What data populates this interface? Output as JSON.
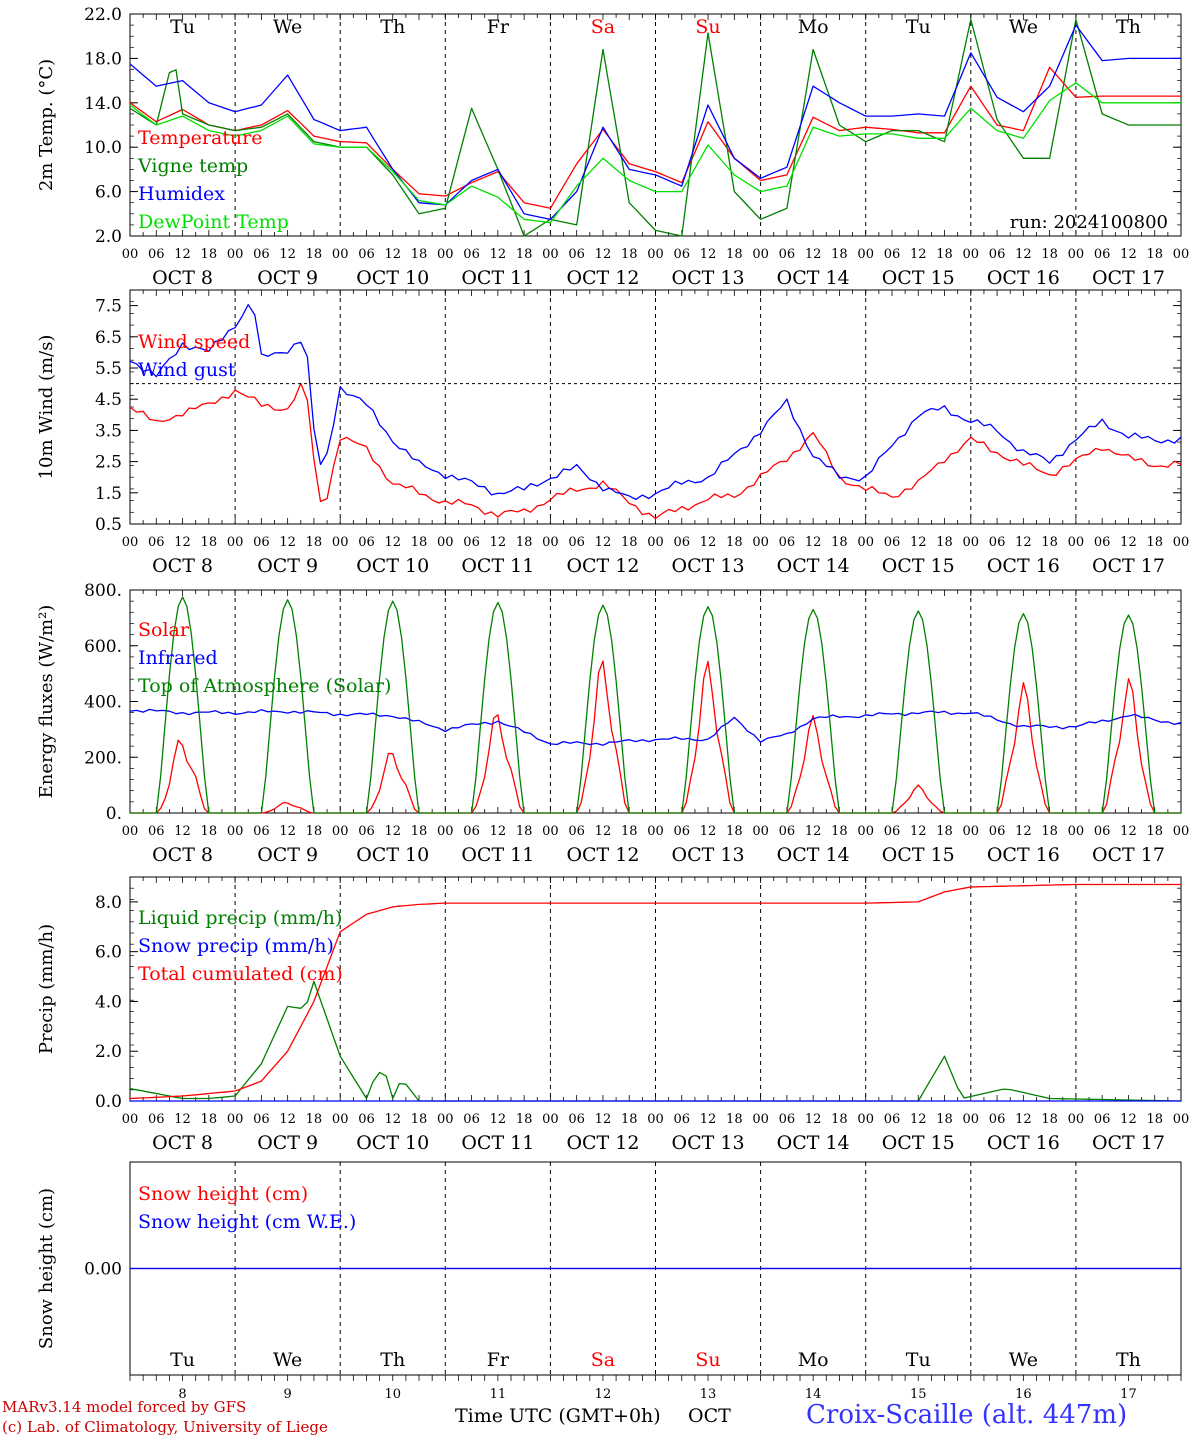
{
  "days": [
    "Tu",
    "We",
    "Th",
    "Fr",
    "Sa",
    "Su",
    "Mo",
    "Tu",
    "We",
    "Th"
  ],
  "weekend_days": [
    4,
    5
  ],
  "day_dates": [
    "OCT  8",
    "OCT  9",
    "OCT 10",
    "OCT 11",
    "OCT 12",
    "OCT 13",
    "OCT 14",
    "OCT 15",
    "OCT 16",
    "OCT 17"
  ],
  "hour_ticks": [
    "00",
    "06",
    "12",
    "18"
  ],
  "end_tick": "00",
  "bottom_dates": [
    "8",
    "9",
    "10",
    "11",
    "12",
    "13",
    "14",
    "15",
    "16",
    "17"
  ],
  "colors": {
    "red": "#ff0000",
    "green": "#008000",
    "blue": "#0000ff",
    "lime": "#00e000",
    "axis": "#000000",
    "purple": "#800080"
  },
  "footer": {
    "model": "MARv3.14 model forced by GFS",
    "copyright": "(c) Lab. of Climatology, University of Liege",
    "time_label": "Time UTC (GMT+0h)",
    "month": "OCT",
    "station": "Croix-Scaille (alt. 447m)"
  },
  "chart_data": [
    {
      "type": "line",
      "ylabel": "2m Temp. (°C)",
      "ylim": [
        2,
        22
      ],
      "yticks": [
        "22.0",
        "18.0",
        "14.0",
        "10.0",
        "6.0",
        "2.0"
      ],
      "annotation": "run: 2024100800",
      "x_unit": "hours since Oct 8 00 UTC",
      "series": [
        {
          "name": "Temperature",
          "color": "red",
          "x": [
            0,
            6,
            12,
            18,
            24,
            30,
            36,
            42,
            48,
            54,
            60,
            66,
            72,
            78,
            84,
            90,
            96,
            102,
            108,
            114,
            120,
            126,
            132,
            138,
            144,
            150,
            156,
            162,
            168,
            174,
            180,
            186,
            192,
            198,
            204,
            210,
            216,
            222,
            228,
            234,
            240
          ],
          "y": [
            14,
            12.3,
            13.4,
            12,
            11.5,
            12,
            13.3,
            11,
            10.5,
            10.4,
            8,
            5.8,
            5.6,
            6.8,
            7.8,
            5,
            4.5,
            8.5,
            11.6,
            8.5,
            7.8,
            6.8,
            12.3,
            9,
            7,
            7.5,
            12.7,
            11.5,
            11.8,
            11.6,
            11.3,
            11.3,
            15.5,
            12,
            11.5,
            17.2,
            14.5,
            14.6,
            14.6,
            14.6,
            14.6
          ]
        },
        {
          "name": "Vigne temp",
          "color": "green",
          "x": [
            0,
            6,
            10,
            12,
            18,
            24,
            30,
            36,
            42,
            48,
            54,
            60,
            66,
            72,
            78,
            84,
            90,
            96,
            102,
            108,
            114,
            120,
            126,
            132,
            138,
            144,
            150,
            156,
            162,
            168,
            174,
            180,
            186,
            192,
            198,
            204,
            210,
            216,
            222,
            228,
            234,
            240
          ],
          "y": [
            13.5,
            12,
            18.3,
            13,
            12,
            11.5,
            11.8,
            13,
            10.5,
            10,
            10,
            7.5,
            4,
            4.5,
            13.5,
            8,
            2,
            3.5,
            3,
            18.8,
            5,
            2.5,
            2,
            20.3,
            6,
            3.5,
            4.5,
            18.8,
            12,
            10.5,
            11.5,
            11.5,
            10.5,
            21.5,
            12.5,
            9,
            9,
            21.5,
            13,
            12,
            12,
            12
          ]
        },
        {
          "name": "Humidex",
          "color": "blue",
          "x": [
            0,
            6,
            12,
            18,
            24,
            30,
            36,
            42,
            48,
            54,
            60,
            66,
            72,
            78,
            84,
            90,
            96,
            102,
            108,
            114,
            120,
            126,
            132,
            138,
            144,
            150,
            156,
            162,
            168,
            174,
            180,
            186,
            192,
            198,
            204,
            210,
            216,
            222,
            228,
            234,
            240
          ],
          "y": [
            17.5,
            15.5,
            16,
            14,
            13.2,
            13.8,
            16.5,
            12.5,
            11.5,
            11.8,
            8,
            5,
            4.8,
            7,
            8,
            4,
            3.5,
            6,
            11.8,
            8,
            7.5,
            6.5,
            13.8,
            9,
            7.2,
            8.2,
            15.5,
            14,
            12.8,
            12.8,
            13,
            12.8,
            18.5,
            14.5,
            13.2,
            15.5,
            21,
            17.8,
            18,
            18,
            18
          ]
        },
        {
          "name": "DewPoint Temp",
          "color": "lime",
          "x": [
            0,
            6,
            12,
            18,
            24,
            30,
            36,
            42,
            48,
            54,
            60,
            66,
            72,
            78,
            84,
            90,
            96,
            102,
            108,
            114,
            120,
            126,
            132,
            138,
            144,
            150,
            156,
            162,
            168,
            174,
            180,
            186,
            192,
            198,
            204,
            210,
            216,
            222,
            228,
            234,
            240
          ],
          "y": [
            13.8,
            12,
            12.8,
            11.5,
            11,
            11.5,
            12.8,
            10.3,
            10,
            10,
            7.8,
            5.2,
            4.8,
            6.5,
            5.5,
            3.5,
            3.2,
            6.5,
            9,
            7,
            6,
            6,
            10.2,
            7.5,
            6,
            6.5,
            11.8,
            11,
            11.2,
            11.2,
            10.8,
            10.8,
            13.5,
            11.5,
            10.8,
            14.2,
            15.8,
            14,
            14,
            14,
            14
          ]
        }
      ]
    },
    {
      "type": "line",
      "ylabel": "10m Wind (m/s)",
      "ylim": [
        0.5,
        8
      ],
      "yticks": [
        "7.5",
        "6.5",
        "5.5",
        "4.5",
        "3.5",
        "2.5",
        "1.5",
        "0.5"
      ],
      "reference_line": 5,
      "series": [
        {
          "name": "Wind speed",
          "color": "red",
          "x": [
            0,
            6,
            12,
            18,
            24,
            30,
            36,
            40,
            42,
            44,
            48,
            54,
            60,
            66,
            72,
            78,
            84,
            90,
            96,
            102,
            108,
            114,
            120,
            126,
            132,
            138,
            144,
            150,
            156,
            162,
            168,
            174,
            180,
            186,
            192,
            198,
            204,
            210,
            216,
            222,
            228,
            234,
            240
          ],
          "y": [
            4.3,
            3.7,
            4.1,
            4.3,
            4.8,
            4.3,
            4.2,
            5.1,
            2.5,
            0.8,
            3.3,
            2.9,
            1.8,
            1.5,
            1.2,
            1.1,
            0.8,
            0.9,
            1.3,
            1.6,
            1.8,
            1.2,
            0.7,
            1.0,
            1.3,
            1.4,
            2.0,
            2.6,
            3.4,
            2.0,
            1.6,
            1.4,
            1.8,
            2.6,
            3.2,
            2.8,
            2.4,
            2.1,
            2.5,
            3.0,
            2.6,
            2.4,
            2.4
          ]
        },
        {
          "name": "Wind gust",
          "color": "blue",
          "x": [
            0,
            6,
            12,
            18,
            24,
            28,
            30,
            36,
            40,
            42,
            44,
            48,
            54,
            60,
            66,
            72,
            78,
            84,
            90,
            96,
            102,
            108,
            114,
            120,
            126,
            132,
            138,
            144,
            150,
            156,
            162,
            168,
            174,
            180,
            186,
            192,
            198,
            204,
            210,
            216,
            222,
            228,
            234,
            240
          ],
          "y": [
            5.8,
            5.2,
            6.3,
            6.0,
            6.9,
            7.7,
            5.8,
            6.1,
            6.5,
            3.5,
            2.0,
            4.9,
            4.3,
            3.2,
            2.4,
            2.1,
            1.8,
            1.5,
            1.6,
            2.0,
            2.3,
            1.7,
            1.3,
            1.5,
            1.8,
            2.0,
            2.7,
            3.5,
            4.4,
            2.7,
            2.0,
            2.0,
            3.0,
            4.0,
            4.2,
            3.8,
            3.5,
            2.8,
            2.5,
            3.2,
            3.8,
            3.3,
            3.2,
            3.2
          ]
        }
      ]
    },
    {
      "type": "line",
      "ylabel": "Energy fluxes (W/m²)",
      "ylim": [
        0,
        800
      ],
      "yticks": [
        "800.",
        "600.",
        "400.",
        "200.",
        "0."
      ],
      "series": [
        {
          "name": "Solar",
          "color": "red",
          "peaks": [
            280,
            40,
            230,
            370,
            560,
            550,
            350,
            100,
            470,
            490
          ]
        },
        {
          "name": "Infrared",
          "color": "blue",
          "x": [
            0,
            12,
            24,
            36,
            48,
            60,
            72,
            84,
            96,
            108,
            120,
            132,
            138,
            144,
            150,
            156,
            168,
            180,
            192,
            204,
            216,
            228,
            240
          ],
          "y": [
            370,
            360,
            360,
            365,
            355,
            350,
            300,
            330,
            250,
            250,
            265,
            265,
            340,
            260,
            280,
            340,
            350,
            360,
            360,
            310,
            310,
            350,
            320
          ]
        },
        {
          "name": "Top of Atmosphere (Solar)",
          "color": "green",
          "peaks": [
            775,
            765,
            760,
            755,
            745,
            740,
            730,
            725,
            715,
            710
          ]
        }
      ]
    },
    {
      "type": "line",
      "ylabel": "Precip (mm/h)",
      "ylim": [
        0,
        9
      ],
      "yticks": [
        "8.0",
        "6.0",
        "4.0",
        "2.0",
        "0.0"
      ],
      "series": [
        {
          "name": "Liquid precip (mm/h)",
          "color": "green",
          "x": [
            0,
            6,
            12,
            18,
            24,
            30,
            36,
            40,
            42,
            48,
            54,
            56,
            58,
            60,
            62,
            66,
            72,
            78,
            84,
            90,
            120,
            150,
            180,
            186,
            190,
            200,
            210,
            240
          ],
          "y": [
            0.5,
            0.3,
            0.1,
            0.1,
            0.2,
            1.5,
            3.8,
            3.7,
            4.8,
            1.8,
            0.1,
            1.0,
            1.3,
            0.1,
            0.9,
            0,
            0,
            0,
            0,
            0,
            0,
            0,
            0,
            1.8,
            0.1,
            0.5,
            0.1,
            0
          ]
        },
        {
          "name": "Snow precip (mm/h)",
          "color": "blue",
          "x": [
            0,
            240
          ],
          "y": [
            0,
            0
          ]
        },
        {
          "name": "Total cumulated (cm)",
          "color": "red",
          "x": [
            0,
            12,
            24,
            30,
            36,
            42,
            48,
            54,
            60,
            66,
            72,
            96,
            120,
            144,
            168,
            180,
            186,
            192,
            204,
            216,
            240
          ],
          "y": [
            0.1,
            0.2,
            0.4,
            0.8,
            2.0,
            4.0,
            6.8,
            7.5,
            7.8,
            7.9,
            7.95,
            7.95,
            7.95,
            7.95,
            7.95,
            8.0,
            8.4,
            8.6,
            8.65,
            8.7,
            8.7
          ]
        }
      ]
    },
    {
      "type": "line",
      "ylabel": "Snow height (cm)",
      "yticks": [
        "0.00"
      ],
      "series": [
        {
          "name": "Snow height (cm)",
          "color": "red",
          "x": [
            0,
            240
          ],
          "y": [
            0,
            0
          ]
        },
        {
          "name": "Snow height (cm W.E.)",
          "color": "blue",
          "x": [
            0,
            240
          ],
          "y": [
            0,
            0
          ]
        }
      ]
    }
  ]
}
